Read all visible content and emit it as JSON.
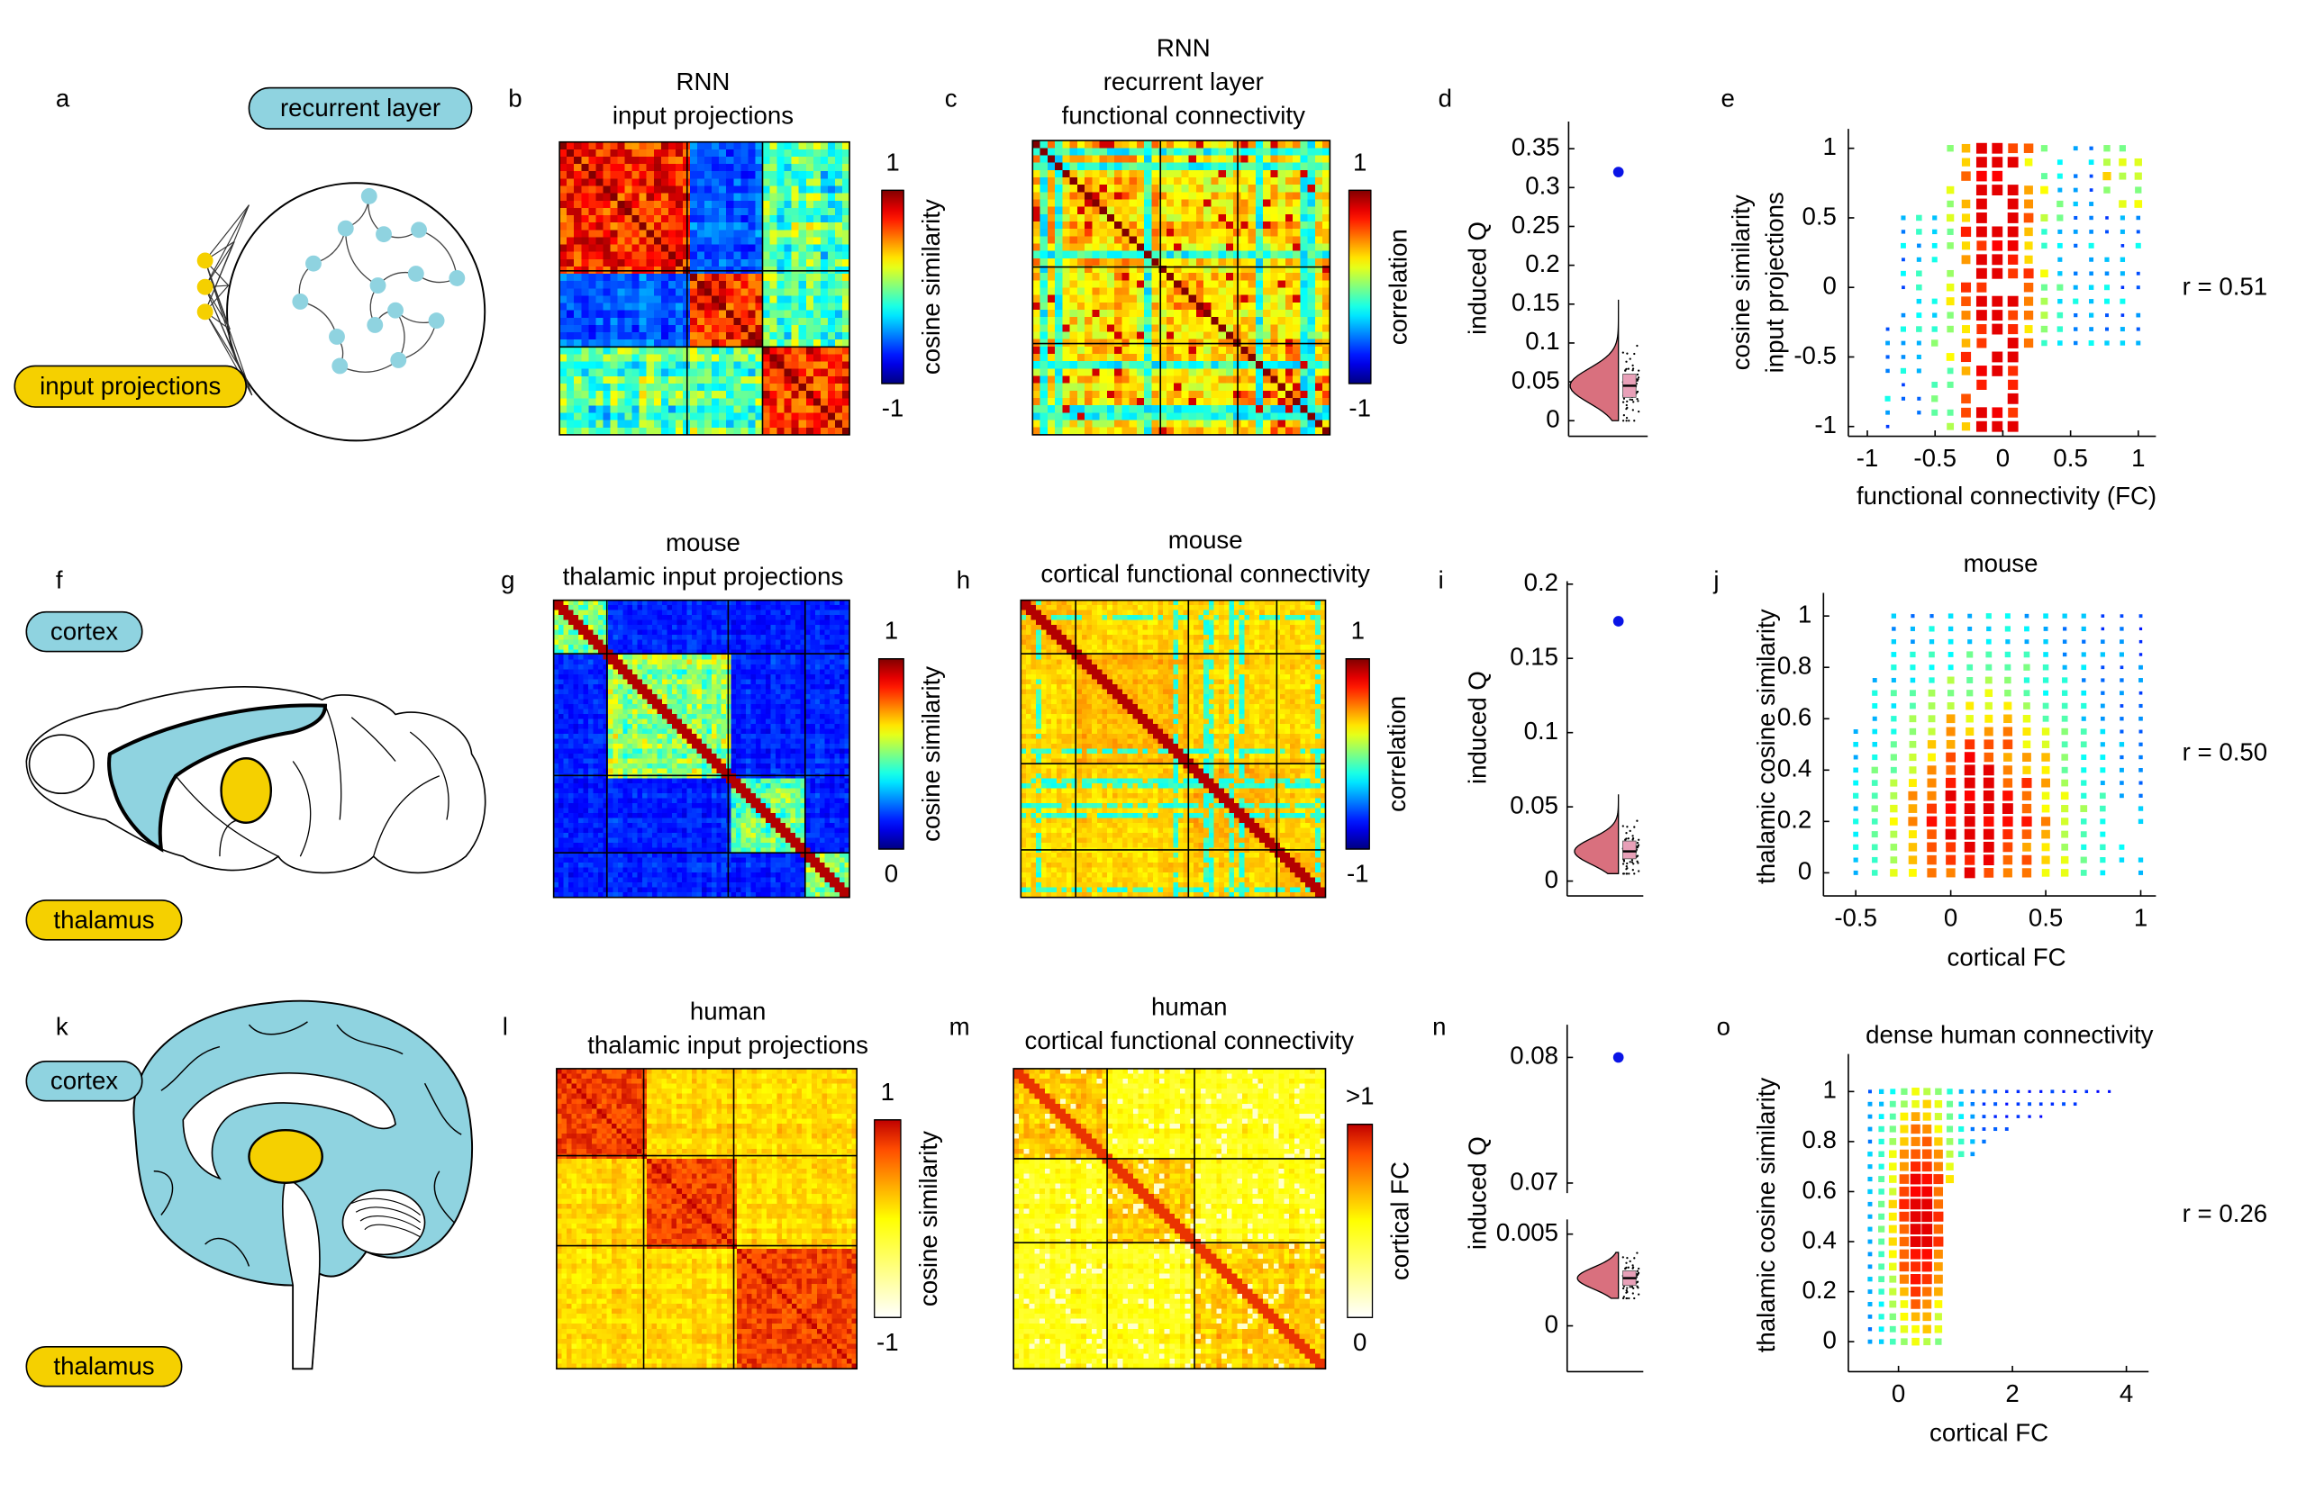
{
  "panels": [
    {
      "label": "a",
      "type": "diagram",
      "labels": [
        "recurrent layer",
        "input projections"
      ]
    },
    {
      "label": "b",
      "type": "heatmap",
      "title": [
        "RNN",
        "input projections"
      ],
      "colormap": "jet",
      "colorbar": {
        "label": "cosine similarity",
        "ticks": [
          1,
          -1
        ]
      }
    },
    {
      "label": "c",
      "type": "heatmap",
      "title": [
        "RNN",
        "recurrent layer",
        "functional connectivity"
      ],
      "colormap": "jet",
      "colorbar": {
        "label": "correlation",
        "ticks": [
          1,
          -1
        ]
      }
    },
    {
      "label": "d",
      "type": "violin",
      "ylabel": "induced Q",
      "segments": [
        {
          "ylim": [
            -0.02,
            0.385
          ],
          "yticks": [
            0,
            0.05,
            0.1,
            0.15,
            0.2,
            0.25,
            0.3,
            0.35
          ]
        }
      ],
      "point": 0.32,
      "point_color": "#0a14e6",
      "range": [
        0,
        0.155
      ],
      "box": [
        0.03,
        0.045,
        0.06
      ],
      "color": "#d9707e"
    },
    {
      "label": "e",
      "type": "scatter",
      "ylabel": [
        "cosine similarity",
        "input projections"
      ],
      "xlabel": "functional connectivity (FC)",
      "xlim": [
        -1.14,
        1.13
      ],
      "xticks": [
        -1,
        -0.5,
        0,
        0.5,
        1
      ],
      "ylim": [
        -1.07,
        1.14
      ],
      "yticks": [
        -1,
        -0.5,
        0,
        0.5,
        1
      ],
      "annotation": "r = 0.51"
    },
    {
      "label": "f",
      "type": "diagram",
      "labels": [
        "cortex",
        "thalamus"
      ]
    },
    {
      "label": "g",
      "type": "heatmap",
      "title": [
        "mouse",
        "thalamic input projections"
      ],
      "colormap": "jet",
      "colorbar": {
        "label": "cosine similarity",
        "ticks": [
          1,
          0
        ]
      }
    },
    {
      "label": "h",
      "type": "heatmap",
      "title": [
        "mouse",
        "cortical functional connectivity"
      ],
      "colormap": "jet",
      "colorbar": {
        "label": "correlation",
        "ticks": [
          1,
          -1
        ]
      }
    },
    {
      "label": "i",
      "type": "violin",
      "ylabel": "induced Q",
      "segments": [
        {
          "ylim": [
            -0.01,
            0.202
          ],
          "yticks": [
            0,
            0.05,
            0.1,
            0.15,
            0.2
          ]
        }
      ],
      "point": 0.175,
      "point_color": "#0a14e6",
      "range": [
        0.005,
        0.058
      ],
      "box": [
        0.015,
        0.02,
        0.027
      ],
      "color": "#d9707e"
    },
    {
      "label": "j",
      "type": "scatter",
      "title": "mouse",
      "ylabel": "thalamic cosine similarity",
      "xlabel": "cortical FC",
      "xlim": [
        -0.67,
        1.08
      ],
      "xticks": [
        -0.5,
        0,
        0.5,
        1
      ],
      "ylim": [
        -0.09,
        1.09
      ],
      "yticks": [
        0,
        0.2,
        0.4,
        0.6,
        0.8,
        1
      ],
      "annotation": "r = 0.50"
    },
    {
      "label": "k",
      "type": "diagram",
      "labels": [
        "cortex",
        "thalamus"
      ]
    },
    {
      "label": "l",
      "type": "heatmap",
      "title": [
        "human",
        "thalamic input projections"
      ],
      "colormap": "hot",
      "colorbar": {
        "label": "cosine similarity",
        "ticks": [
          1,
          -1
        ]
      }
    },
    {
      "label": "m",
      "type": "heatmap",
      "title": [
        "human",
        "cortical functional connectivity"
      ],
      "colormap": "hot",
      "colorbar": {
        "label": "cortical FC",
        "ticks": [
          {
            "value": 1,
            "label": ">1"
          },
          0
        ]
      }
    },
    {
      "label": "n",
      "type": "violin",
      "ylabel": "induced Q",
      "segments": [
        {
          "ylim": [
            0.0692,
            0.0826
          ],
          "yticks": [
            0.07,
            0.08
          ]
        },
        {
          "ylim": [
            -0.0025,
            0.0058
          ],
          "yticks": [
            0,
            0.005
          ]
        }
      ],
      "point": 0.08,
      "point_color": "#0a14e6",
      "range": [
        0.0015,
        0.004
      ],
      "box": [
        0.0022,
        0.0026,
        0.003
      ],
      "color": "#d9707e"
    },
    {
      "label": "o",
      "type": "scatter",
      "title": "dense human connectivity",
      "ylabel": "thalamic cosine similarity",
      "xlabel": "cortical FC",
      "xlim": [
        -0.88,
        4.39
      ],
      "xticks": [
        0,
        2,
        4
      ],
      "ylim": [
        -0.12,
        1.15
      ],
      "yticks": [
        0,
        0.2,
        0.4,
        0.6,
        0.8,
        1
      ],
      "annotation": "r = 0.26"
    }
  ]
}
